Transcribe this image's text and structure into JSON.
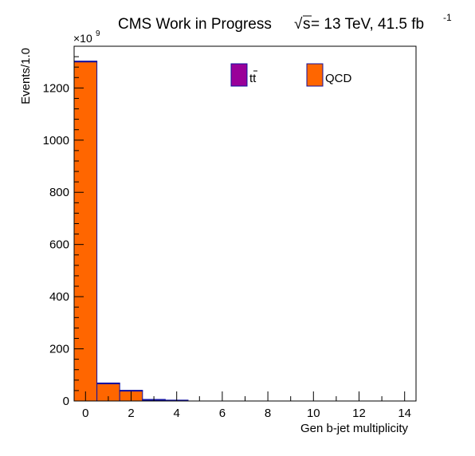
{
  "header": {
    "title_text": "CMS Work in Progress",
    "sqrt_symbol": "√",
    "energy_var": "s",
    "energy_value": " = 13 TeV, 41.5 fb",
    "lumi_exponent": "-1"
  },
  "chart_data": {
    "type": "bar",
    "histogram": "stacked",
    "title": "",
    "xlabel": "Gen b-jet multiplicity",
    "ylabel": "Events/1.0",
    "y_multiplier": "×10",
    "y_multiplier_exp": "9",
    "xlim": [
      -0.5,
      14.5
    ],
    "ylim": [
      0,
      1360
    ],
    "x_ticks": [
      "0",
      "2",
      "4",
      "6",
      "8",
      "10",
      "12",
      "14"
    ],
    "y_ticks": [
      "0",
      "200",
      "400",
      "600",
      "800",
      "1000",
      "1200"
    ],
    "bin_edges": [
      -0.5,
      0.5,
      1.5,
      2.5,
      3.5,
      4.5,
      5.5,
      6.5,
      7.5,
      8.5,
      9.5,
      10.5,
      11.5,
      12.5,
      13.5,
      14.5
    ],
    "series": [
      {
        "name": "QCD",
        "color": "#ff6600",
        "edge_color": "#1010a0",
        "values": [
          1300,
          66,
          38,
          3,
          0.3,
          0,
          0,
          0,
          0,
          0,
          0,
          0,
          0,
          0,
          0
        ]
      },
      {
        "name": "tt̄",
        "color": "#990099",
        "edge_color": "#1010a0",
        "values": [
          0.5,
          1.0,
          0.8,
          0.2,
          0.05,
          0,
          0,
          0,
          0,
          0,
          0,
          0,
          0,
          0,
          0
        ]
      }
    ],
    "legend": [
      {
        "label_main": "tt",
        "label_bar": "t",
        "series": "tt̄"
      },
      {
        "label_main": "QCD",
        "series": "QCD"
      }
    ],
    "legend_position": "top-right",
    "grid": false
  }
}
